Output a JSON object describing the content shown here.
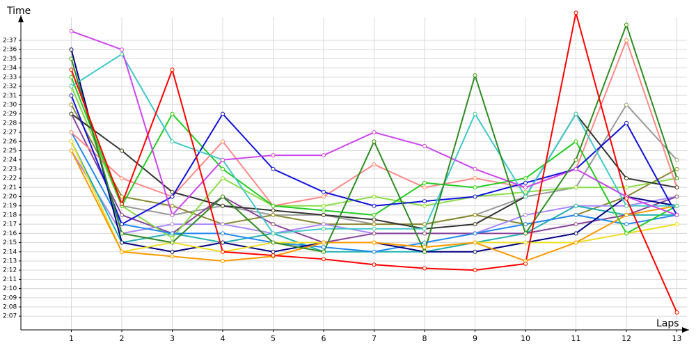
{
  "chart_data": {
    "type": "line",
    "y_label": "Time",
    "x_label": "Laps",
    "x": [
      1,
      2,
      3,
      4,
      5,
      6,
      7,
      8,
      9,
      10,
      11,
      12,
      13
    ],
    "xlim": [
      0,
      13.2
    ],
    "xticks": [
      1,
      2,
      3,
      4,
      5,
      6,
      7,
      8,
      9,
      10,
      11,
      12,
      13
    ],
    "ylim": [
      125.5,
      159.5
    ],
    "yticks": [
      {
        "value": 127,
        "label": "2:07"
      },
      {
        "value": 128,
        "label": "2:08"
      },
      {
        "value": 129,
        "label": "2:09"
      },
      {
        "value": 130,
        "label": "2:10"
      },
      {
        "value": 131,
        "label": "2:11"
      },
      {
        "value": 132,
        "label": "2:12"
      },
      {
        "value": 133,
        "label": "2:13"
      },
      {
        "value": 134,
        "label": "2:14"
      },
      {
        "value": 135,
        "label": "2:15"
      },
      {
        "value": 136,
        "label": "2:16"
      },
      {
        "value": 137,
        "label": "2:17"
      },
      {
        "value": 138,
        "label": "2:18"
      },
      {
        "value": 139,
        "label": "2:19"
      },
      {
        "value": 140,
        "label": "2:20"
      },
      {
        "value": 141,
        "label": "2:21"
      },
      {
        "value": 142,
        "label": "2:22"
      },
      {
        "value": 143,
        "label": "2:23"
      },
      {
        "value": 144,
        "label": "2:24"
      },
      {
        "value": 145,
        "label": "2:25"
      },
      {
        "value": 146,
        "label": "2:26"
      },
      {
        "value": 147,
        "label": "2:27"
      },
      {
        "value": 148,
        "label": "2:28"
      },
      {
        "value": 149,
        "label": "2:29"
      },
      {
        "value": 150,
        "label": "2:30"
      },
      {
        "value": 151,
        "label": "2:31"
      },
      {
        "value": 152,
        "label": "2:32"
      },
      {
        "value": 153,
        "label": "2:33"
      },
      {
        "value": 154,
        "label": "2:34"
      },
      {
        "value": 155,
        "label": "2:35"
      },
      {
        "value": 156,
        "label": "2:36"
      },
      {
        "value": 157,
        "label": "2:37"
      }
    ],
    "grid": true,
    "series": [
      {
        "color": "#999999",
        "values": [
          152,
          139,
          138,
          139,
          138,
          138,
          137,
          137,
          138,
          140,
          141,
          150,
          144
        ]
      },
      {
        "color": "#888833",
        "values": [
          150,
          140,
          139,
          137,
          138,
          137,
          137,
          137,
          138,
          137,
          138,
          140,
          143
        ]
      },
      {
        "color": "#aa88ff",
        "values": [
          145,
          136,
          137,
          137,
          136,
          137,
          136,
          136,
          136,
          138,
          139,
          139,
          140
        ]
      },
      {
        "color": "#20b0b0",
        "values": [
          146,
          135,
          136,
          135,
          136,
          134,
          134,
          134,
          135,
          136,
          139,
          138,
          138
        ]
      },
      {
        "color": "#884499",
        "values": [
          149,
          138,
          136,
          140,
          137,
          135,
          136,
          136,
          136,
          136,
          137,
          138,
          140
        ]
      },
      {
        "color": "#88dd44",
        "values": [
          152,
          139,
          135.5,
          142,
          139,
          139,
          140,
          139,
          140,
          140.5,
          141,
          141,
          142
        ]
      },
      {
        "color": "#2288ee",
        "values": [
          147,
          137,
          136,
          136,
          135,
          134.5,
          134,
          135,
          136,
          137,
          138,
          137,
          138
        ]
      },
      {
        "color": "#000080",
        "values": [
          156,
          135,
          134,
          135,
          134,
          135,
          135,
          134,
          134,
          135,
          136,
          140,
          139
        ]
      },
      {
        "color": "#eedd22",
        "values": [
          146,
          134,
          135,
          134,
          135,
          135,
          135,
          134.5,
          135,
          135,
          135,
          136,
          137
        ]
      },
      {
        "color": "#ff9900",
        "values": [
          145,
          134,
          133.5,
          133,
          133.5,
          135,
          135,
          134.5,
          135,
          133,
          135,
          138,
          139
        ]
      },
      {
        "color": "#ff8888",
        "values": [
          147,
          142,
          140,
          146,
          139,
          140,
          143.5,
          141,
          142,
          141,
          143,
          157,
          141
        ]
      },
      {
        "color": "#333333",
        "values": [
          149,
          145,
          140.5,
          139,
          138.5,
          138,
          137.5,
          136.5,
          137,
          140,
          149,
          142,
          141
        ]
      },
      {
        "color": "#22cc22",
        "values": [
          153,
          139,
          149,
          143,
          139,
          138.5,
          138,
          141.5,
          141,
          142,
          146,
          136,
          139
        ]
      },
      {
        "color": "#1010dd",
        "values": [
          151,
          137,
          140,
          149,
          143,
          140.5,
          139,
          139.5,
          140,
          141.5,
          143,
          148,
          138
        ]
      },
      {
        "color": "#40c8c8",
        "values": [
          152,
          155.5,
          146,
          144,
          136,
          136.5,
          136.5,
          136.5,
          149,
          140,
          149,
          139,
          139
        ]
      },
      {
        "color": "#cc44ee",
        "values": [
          158,
          156,
          138,
          144,
          144.5,
          144.5,
          147,
          145.5,
          143,
          141,
          143,
          140,
          138
        ]
      },
      {
        "color": "#2e8b22",
        "values": [
          155,
          136,
          135,
          140,
          135,
          134,
          146,
          134,
          153.2,
          136,
          144,
          158.7,
          142
        ]
      },
      {
        "color": "#ff0000",
        "values": [
          153.8,
          139.2,
          153.8,
          134,
          133.6,
          133.2,
          132.6,
          132.2,
          132,
          132.7,
          160,
          139.8,
          127.4
        ]
      }
    ]
  }
}
